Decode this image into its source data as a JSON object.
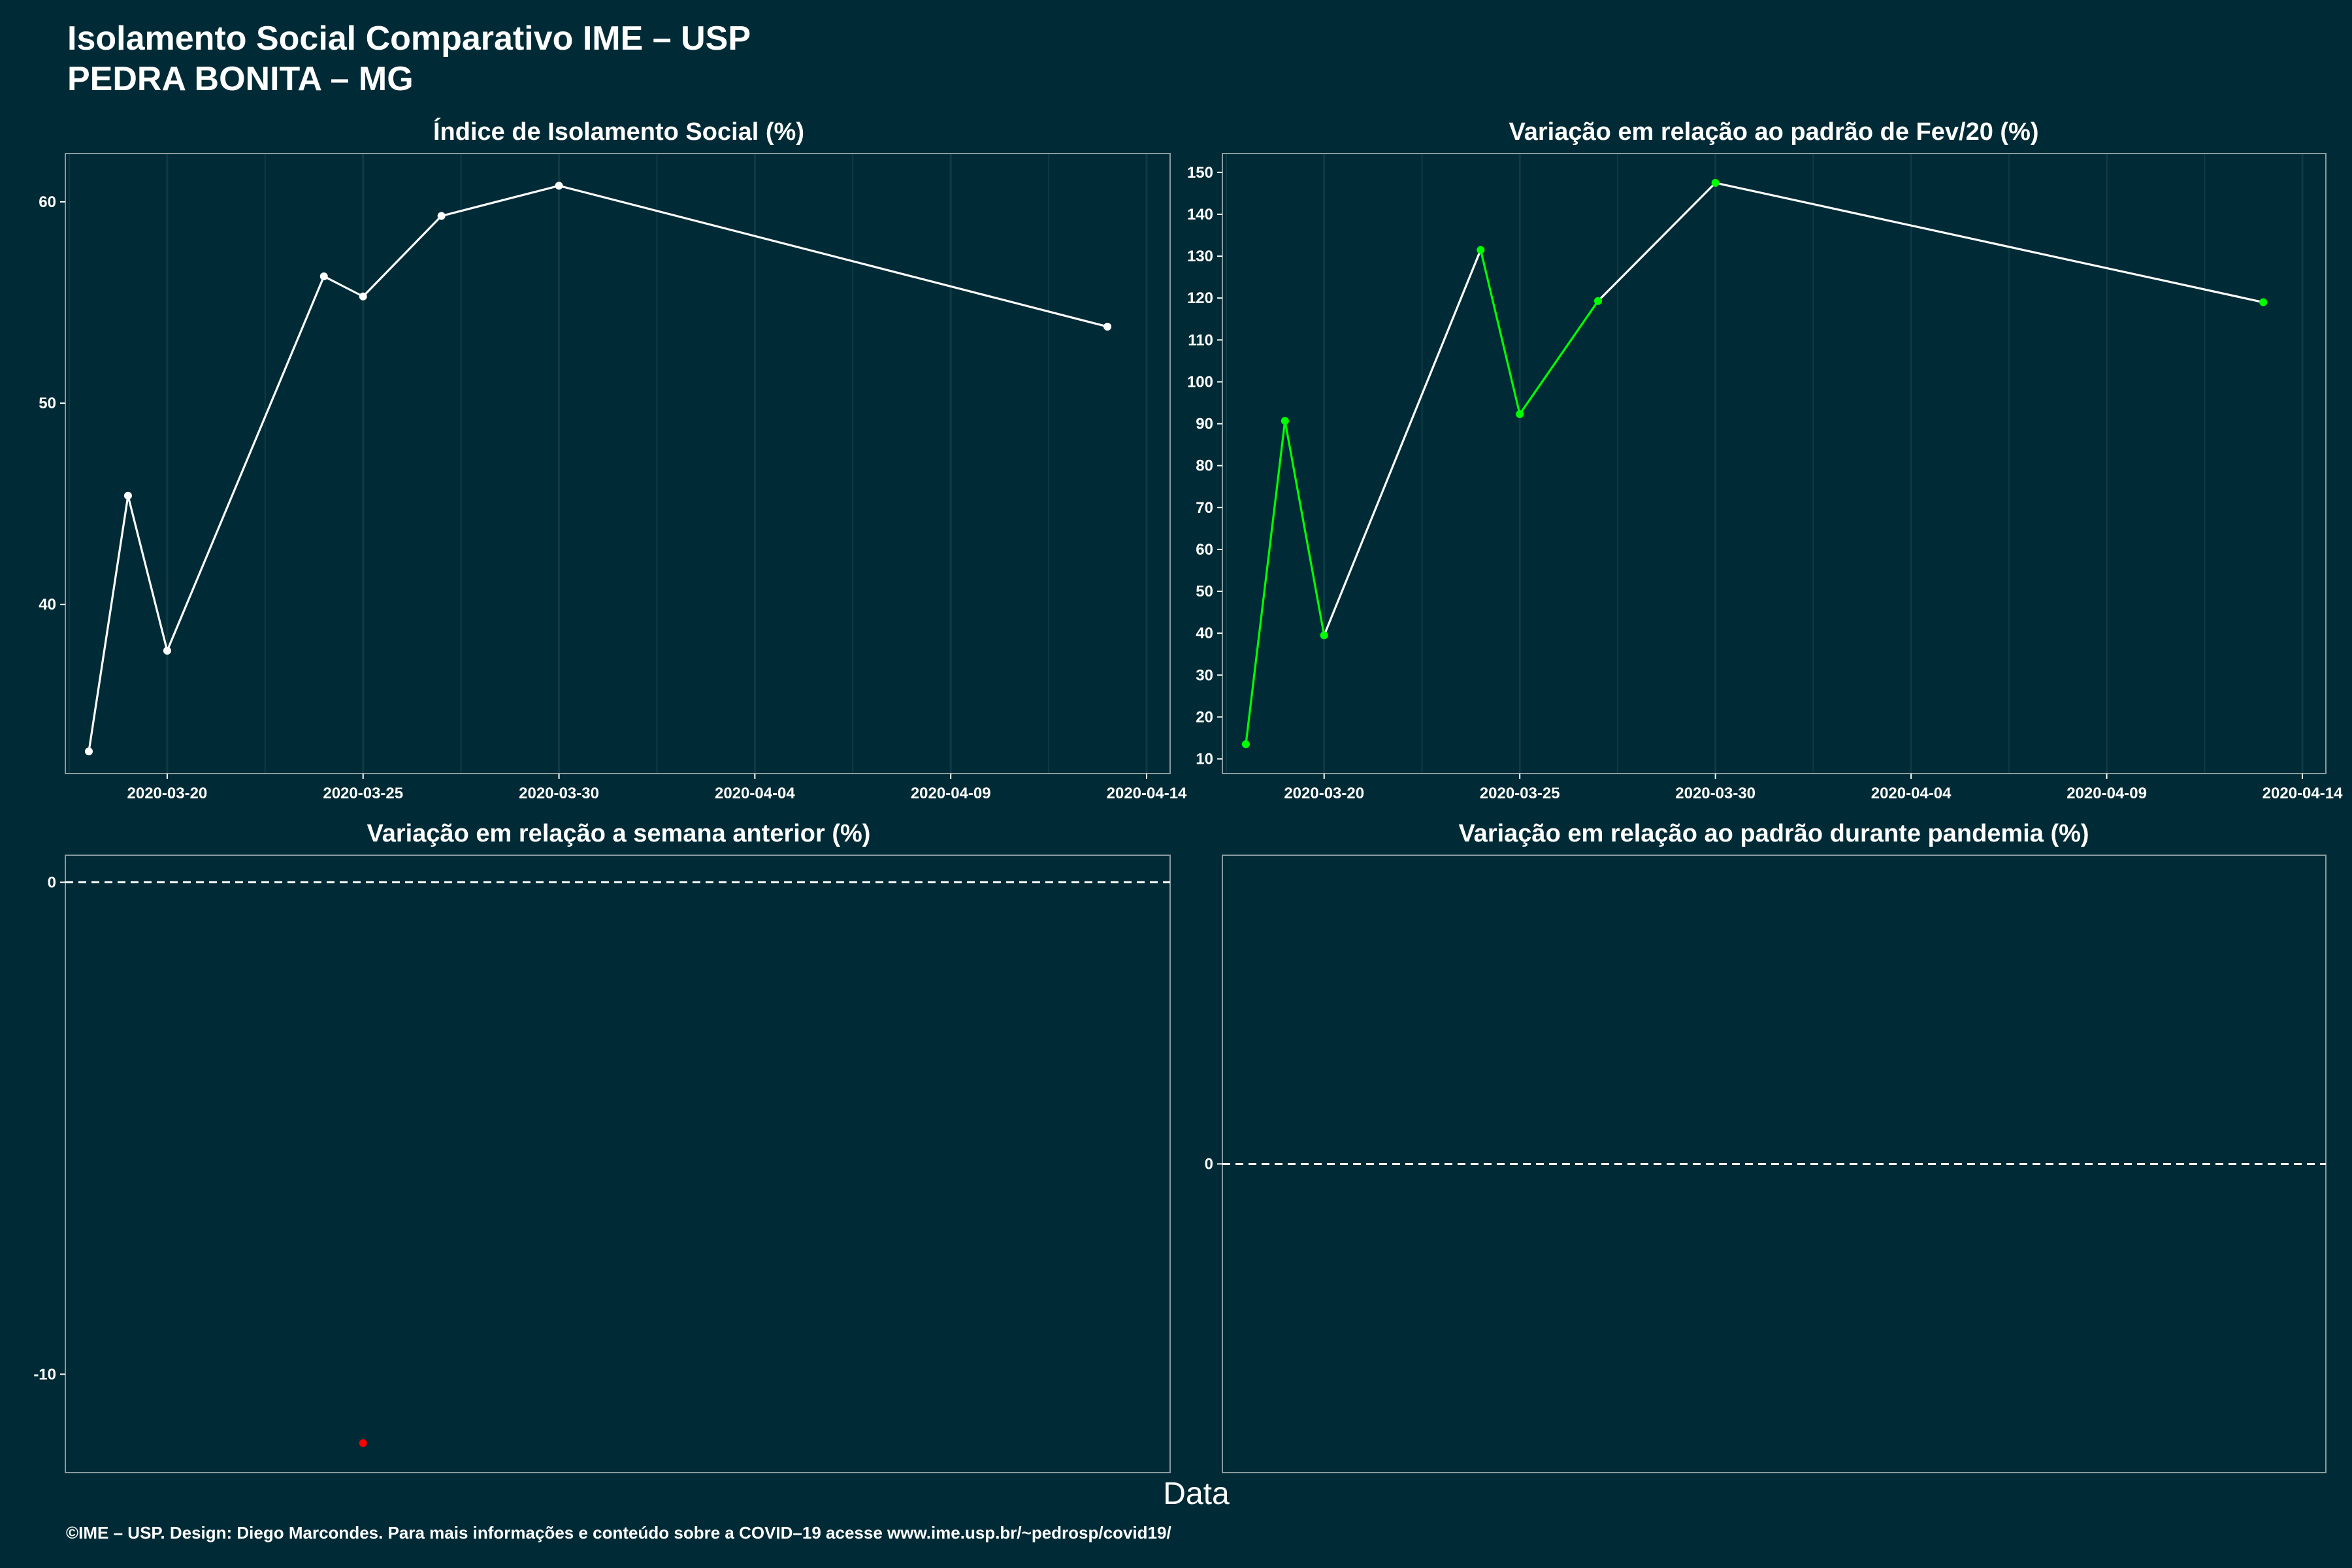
{
  "header": {
    "title": "Isolamento Social Comparativo IME – USP",
    "subtitle": "PEDRA BONITA – MG"
  },
  "xlabel": "Data",
  "footer": "©IME – USP. Design: Diego Marcondes. Para mais informações e conteúdo sobre a COVID–19 acesse www.ime.usp.br/~pedrosp/covid19/",
  "colors": {
    "background": "#002b36",
    "line": "#ffffff",
    "green": "#00ff00",
    "red": "#ff0000",
    "grid": "#0d3a45",
    "panel_border": "#8a9aa0"
  },
  "chart_data": [
    {
      "type": "line",
      "title": "Índice de Isolamento Social (%)",
      "x": [
        "2020-03-18",
        "2020-03-19",
        "2020-03-20",
        "2020-03-24",
        "2020-03-25",
        "2020-03-27",
        "2020-03-30",
        "2020-04-13"
      ],
      "values": [
        32.7,
        45.4,
        37.7,
        56.3,
        55.3,
        59.3,
        60.8,
        53.8
      ],
      "ylim": [
        31.6,
        62.4
      ],
      "xlim": [
        "2020-03-17.4",
        "2020-04-14.6"
      ],
      "yticks": [
        40,
        50,
        60
      ],
      "xticks": [
        "2020-03-20",
        "2020-03-25",
        "2020-03-30",
        "2020-04-04",
        "2020-04-09",
        "2020-04-14"
      ],
      "grid": true
    },
    {
      "type": "line",
      "title": "Variação em relação ao padrão de Fev/20 (%)",
      "x": [
        "2020-03-18",
        "2020-03-19",
        "2020-03-20",
        "2020-03-24",
        "2020-03-25",
        "2020-03-27",
        "2020-03-30",
        "2020-04-13"
      ],
      "values": [
        13.5,
        90.7,
        39.5,
        131.5,
        92.3,
        119.3,
        147.5,
        119.0
      ],
      "ylim": [
        6.5,
        154.5
      ],
      "xlim": [
        "2020-03-17.4",
        "2020-04-14.6"
      ],
      "yticks": [
        10,
        20,
        30,
        40,
        50,
        60,
        70,
        80,
        90,
        100,
        110,
        120,
        130,
        140,
        150
      ],
      "xticks": [
        "2020-03-20",
        "2020-03-25",
        "2020-03-30",
        "2020-04-04",
        "2020-04-09",
        "2020-04-14"
      ],
      "segment_colors": [
        "green",
        "green",
        "white",
        "green",
        "green",
        "white",
        "white"
      ],
      "grid": true
    },
    {
      "type": "scatter",
      "title": "Variação em relação a semana anterior (%)",
      "x": [
        "2020-03-25"
      ],
      "values": [
        -11.4
      ],
      "ylim": [
        -12.0,
        0.55
      ],
      "yticks": [
        -10,
        0
      ],
      "reference_line": 0,
      "point_color": "red"
    },
    {
      "type": "scatter",
      "title": "Variação em relação ao padrão durante pandemia (%)",
      "x": [],
      "values": [],
      "yticks": [
        0
      ],
      "reference_line": 0
    }
  ]
}
